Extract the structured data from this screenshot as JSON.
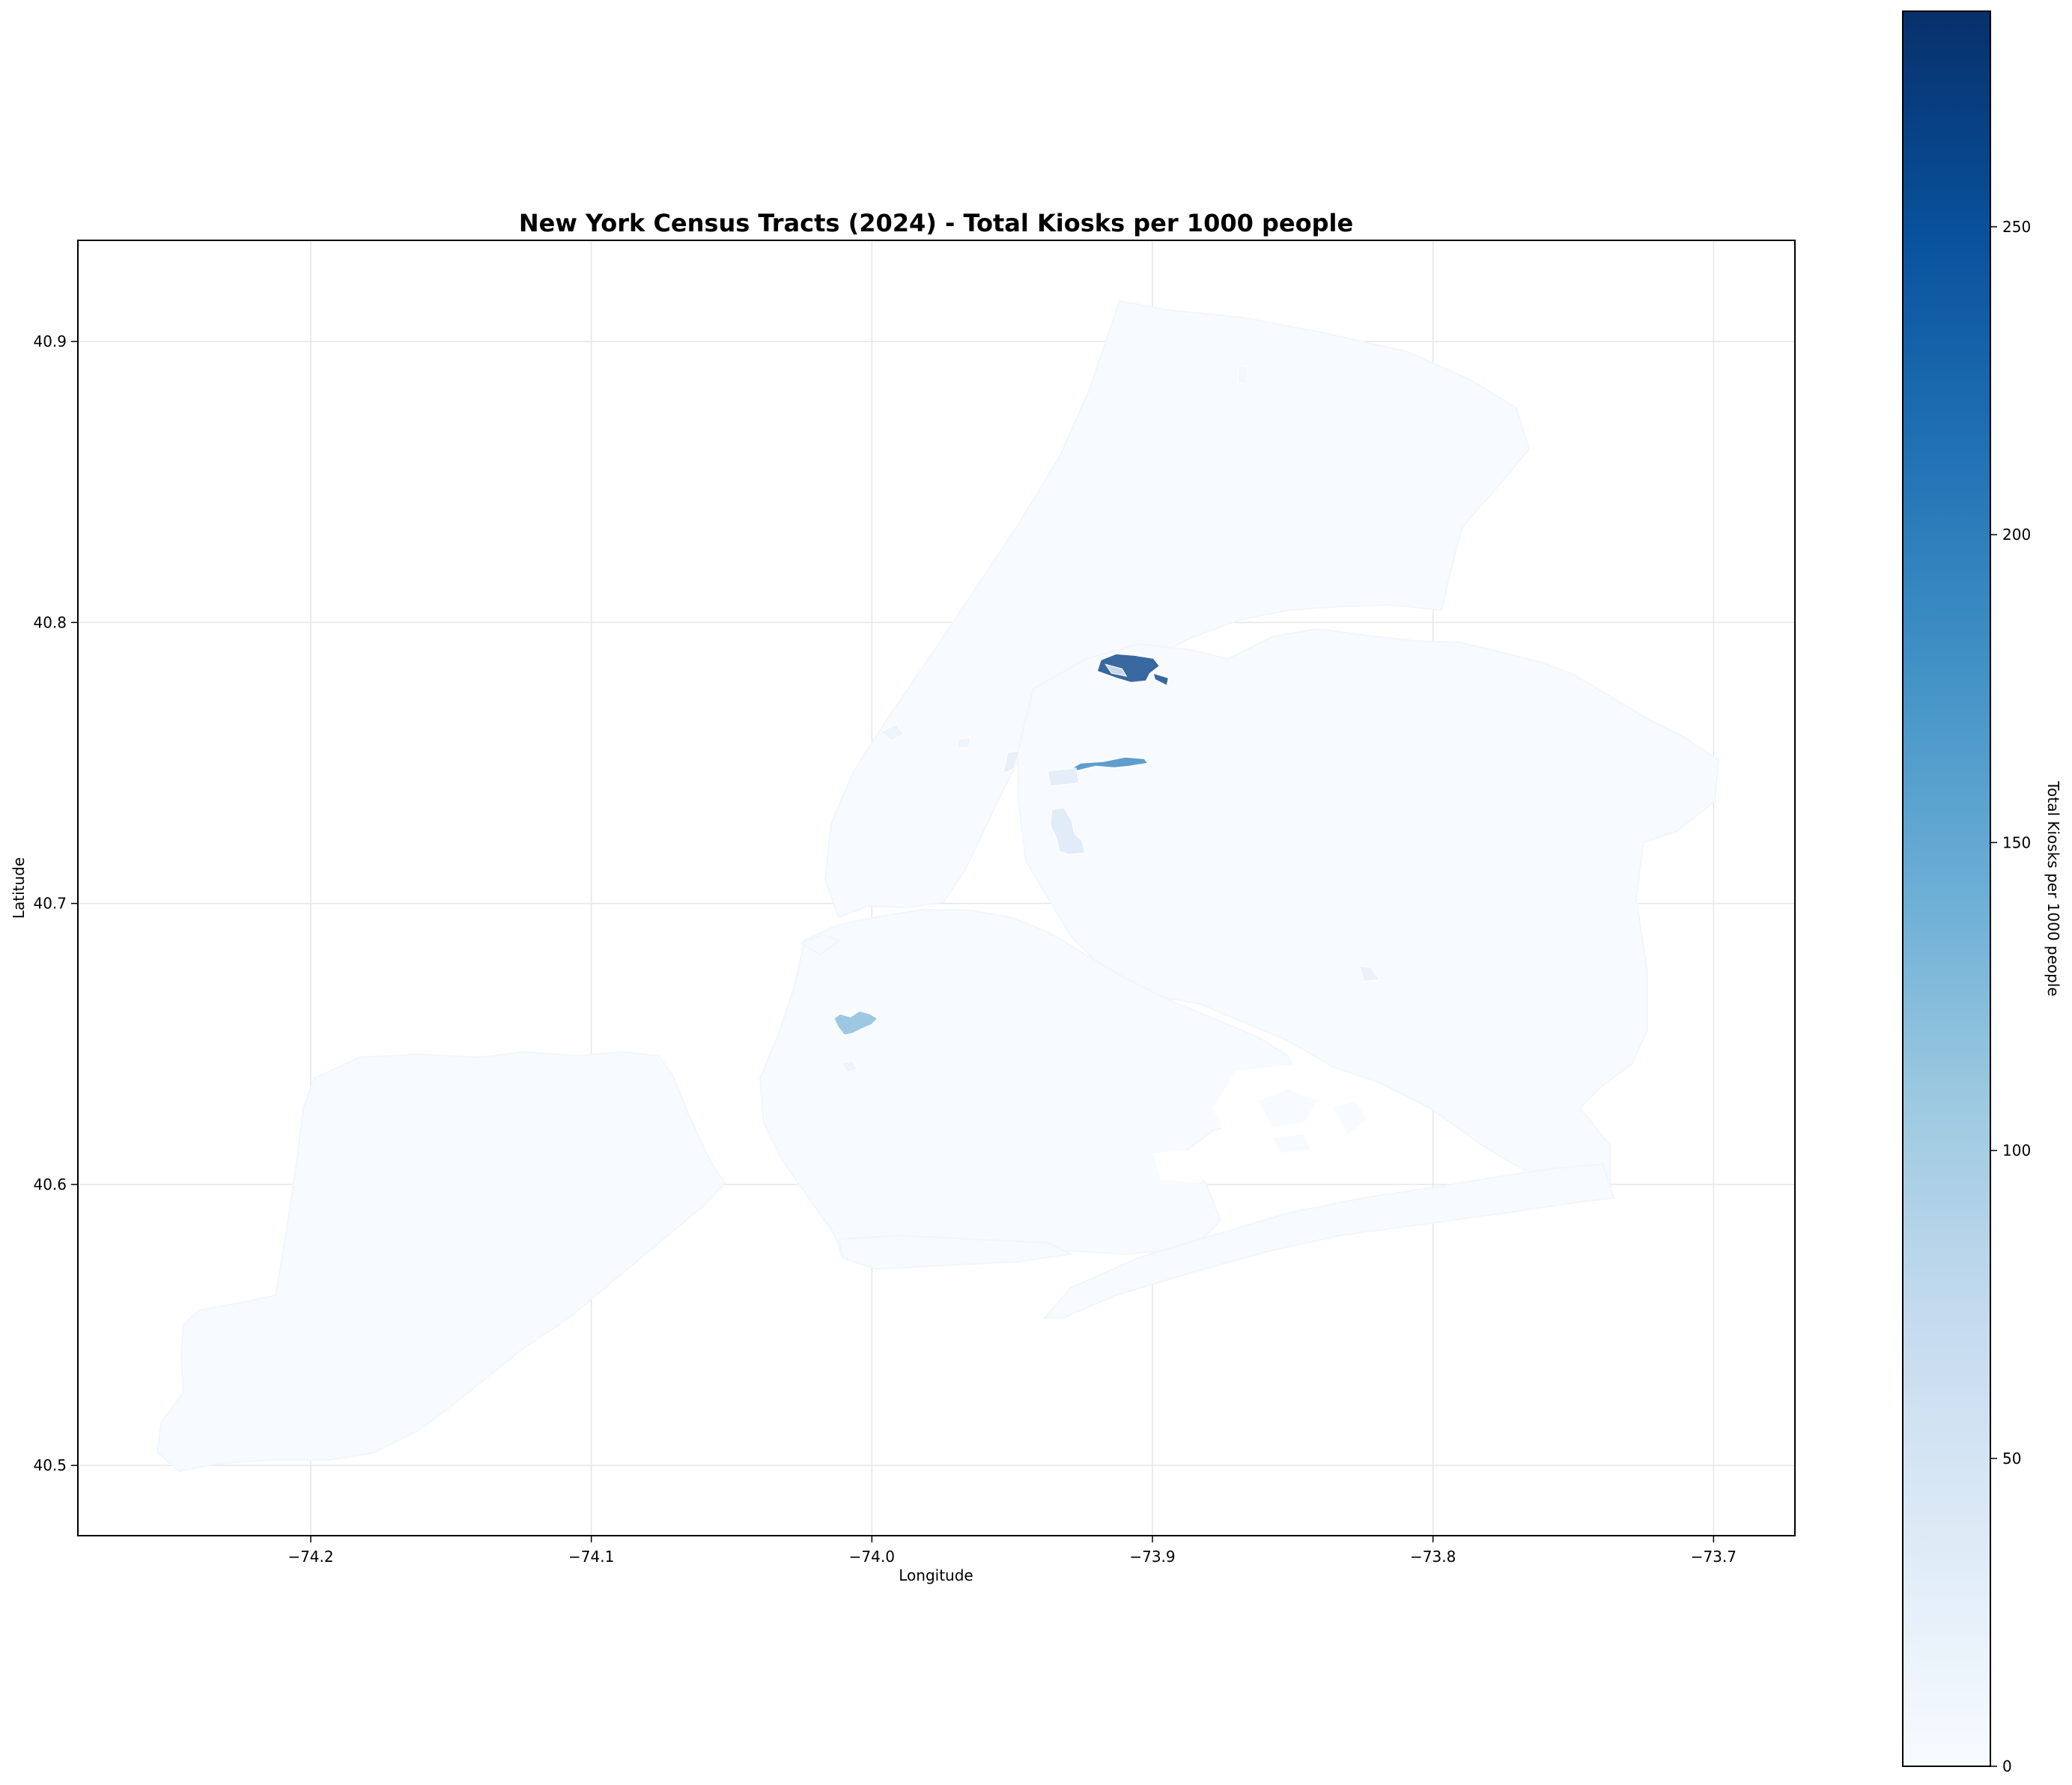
{
  "figure": {
    "title": "New York Census Tracts (2024) - Total Kiosks per 1000 people",
    "xlabel": "Longitude",
    "ylabel": "Latitude",
    "colorbar_label": "Total Kiosks per 1000 people"
  },
  "chart_data": {
    "type": "heatmap",
    "subtype": "choropleth-map",
    "title": "New York Census Tracts (2024) - Total Kiosks per 1000 people",
    "xlabel": "Longitude",
    "ylabel": "Latitude",
    "xlim": [
      -74.283,
      -73.671
    ],
    "ylim": [
      40.475,
      40.936
    ],
    "xticks": [
      -74.2,
      -74.1,
      -74.0,
      -73.9,
      -73.8,
      -73.7
    ],
    "xtick_labels": [
      "−74.2",
      "−74.1",
      "−74.0",
      "−73.9",
      "−73.8",
      "−73.7"
    ],
    "yticks": [
      40.5,
      40.6,
      40.7,
      40.8,
      40.9
    ],
    "ytick_labels": [
      "40.5",
      "40.6",
      "40.7",
      "40.8",
      "40.9"
    ],
    "grid": true,
    "colormap": "Blues",
    "colorbar": {
      "label": "Total Kiosks per 1000 people",
      "range": [
        0,
        285
      ],
      "ticks": [
        0,
        50,
        100,
        150,
        200,
        250
      ],
      "tick_labels": [
        "0",
        "50",
        "100",
        "150",
        "200",
        "250"
      ],
      "position": "right"
    },
    "base_fill_color": "#f7fbff",
    "highlighted_tracts": [
      {
        "lon": -73.905,
        "lat": 40.784,
        "value": 265
      },
      {
        "lon": -73.915,
        "lat": 40.751,
        "value": 190
      },
      {
        "lon": -74.006,
        "lat": 40.658,
        "value": 125
      },
      {
        "lon": -73.931,
        "lat": 40.726,
        "value": 40
      },
      {
        "lon": -73.932,
        "lat": 40.745,
        "value": 35
      },
      {
        "lon": -73.95,
        "lat": 40.75,
        "value": 30
      },
      {
        "lon": -73.823,
        "lat": 40.675,
        "value": 25
      },
      {
        "lon": -73.993,
        "lat": 40.76,
        "value": 20
      },
      {
        "lon": -74.008,
        "lat": 40.642,
        "value": 20
      },
      {
        "lon": -73.967,
        "lat": 40.757,
        "value": 15
      },
      {
        "lon": -73.913,
        "lat": 40.783,
        "value": 15
      },
      {
        "lon": -73.868,
        "lat": 40.888,
        "value": 10
      }
    ]
  }
}
